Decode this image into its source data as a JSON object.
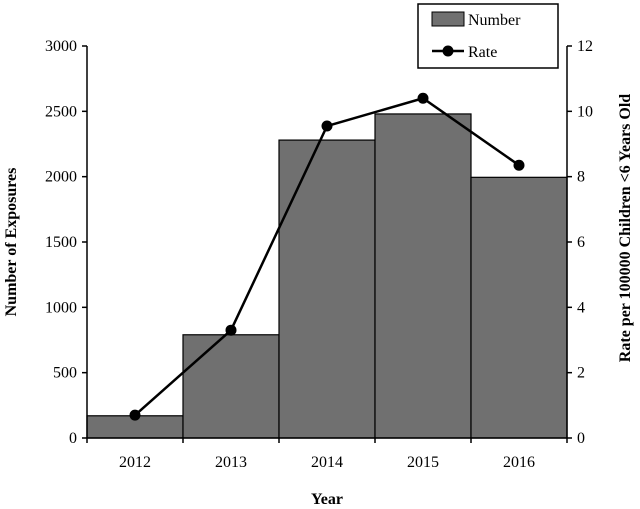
{
  "chart_data": {
    "type": "bar",
    "categories": [
      "2012",
      "2013",
      "2014",
      "2015",
      "2016"
    ],
    "series": [
      {
        "name": "Number",
        "type": "bar",
        "axis": "left",
        "color": "#707070",
        "values": [
          170,
          790,
          2280,
          2480,
          1995
        ]
      },
      {
        "name": "Rate",
        "type": "line",
        "axis": "right",
        "color": "#000000",
        "values": [
          0.7,
          3.3,
          9.55,
          10.4,
          8.35
        ]
      }
    ],
    "xlabel": "Year",
    "ylabel": "Number of Exposures",
    "y2label": "Rate per 100000 Children <6 Years Old",
    "ylim": [
      0,
      3000
    ],
    "y2lim": [
      0,
      12
    ],
    "yticks": [
      "0",
      "500",
      "1000",
      "1500",
      "2000",
      "2500",
      "3000"
    ],
    "y2ticks": [
      "0",
      "2",
      "4",
      "6",
      "8",
      "10",
      "12"
    ],
    "legend": {
      "position": "top-right",
      "entries": [
        "Number",
        "Rate"
      ]
    },
    "grid": false
  }
}
